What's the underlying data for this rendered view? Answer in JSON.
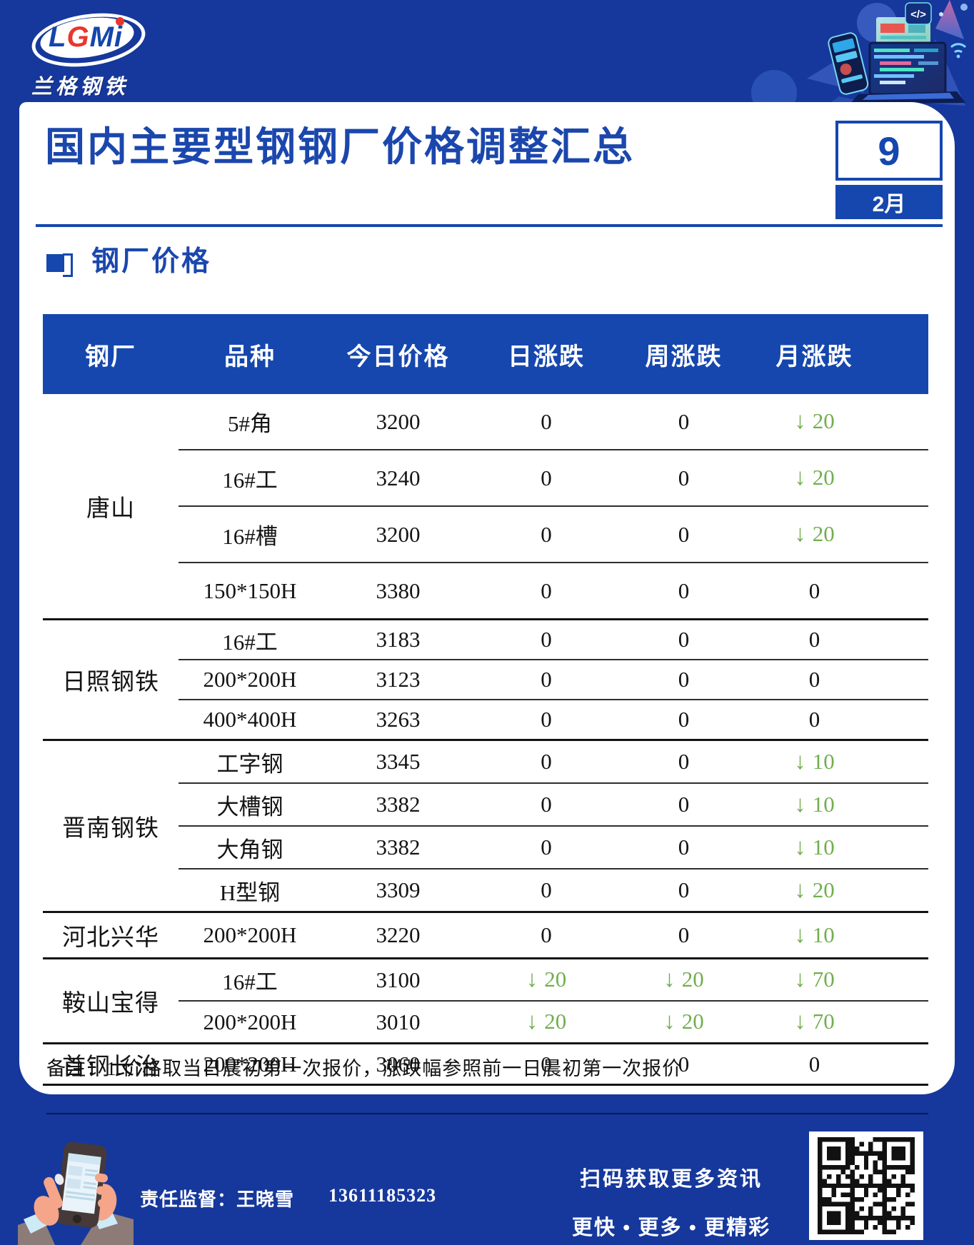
{
  "page": {
    "bg": "#16389c",
    "accent": "#1547ae",
    "down_green": "#71ae50"
  },
  "header": {
    "logo": {
      "letters": [
        {
          "ch": "L",
          "color": "#1446ad"
        },
        {
          "ch": "G",
          "color": "#e8362e"
        },
        {
          "ch": "M",
          "color": "#1446ad"
        },
        {
          "ch": "i",
          "color": "#1446ad"
        }
      ],
      "brand": "兰格钢铁"
    },
    "illustration": {
      "code_badge": "</>"
    }
  },
  "card": {
    "title": "国内主要型钢钢厂价格调整汇总",
    "date": {
      "day": "9",
      "month": "2月"
    },
    "section_title": "钢厂价格",
    "note": "备注：1.价格取当日晨初第一次报价，涨跌幅参照前一日晨初第一次报价"
  },
  "table": {
    "headers": [
      "钢厂",
      "品种",
      "今日价格",
      "日涨跌",
      "周涨跌",
      "月涨跌"
    ],
    "groups": [
      {
        "factory": "唐山",
        "rows": [
          {
            "product": "5#角",
            "price": "3200",
            "day": "0",
            "week": "0",
            "month": "↓20"
          },
          {
            "product": "16#工",
            "price": "3240",
            "day": "0",
            "week": "0",
            "month": "↓20"
          },
          {
            "product": "16#槽",
            "price": "3200",
            "day": "0",
            "week": "0",
            "month": "↓20"
          },
          {
            "product": "150*150H",
            "price": "3380",
            "day": "0",
            "week": "0",
            "month": "0"
          }
        ]
      },
      {
        "factory": "日照钢铁",
        "rows": [
          {
            "product": "16#工",
            "price": "3183",
            "day": "0",
            "week": "0",
            "month": "0"
          },
          {
            "product": "200*200H",
            "price": "3123",
            "day": "0",
            "week": "0",
            "month": "0"
          },
          {
            "product": "400*400H",
            "price": "3263",
            "day": "0",
            "week": "0",
            "month": "0"
          }
        ]
      },
      {
        "factory": "晋南钢铁",
        "rows": [
          {
            "product": "工字钢",
            "price": "3345",
            "day": "0",
            "week": "0",
            "month": "↓10"
          },
          {
            "product": "大槽钢",
            "price": "3382",
            "day": "0",
            "week": "0",
            "month": "↓10"
          },
          {
            "product": "大角钢",
            "price": "3382",
            "day": "0",
            "week": "0",
            "month": "↓10"
          },
          {
            "product": "H型钢",
            "price": "3309",
            "day": "0",
            "week": "0",
            "month": "↓20"
          }
        ]
      },
      {
        "factory": "河北兴华",
        "rows": [
          {
            "product": "200*200H",
            "price": "3220",
            "day": "0",
            "week": "0",
            "month": "↓10"
          }
        ]
      },
      {
        "factory": "鞍山宝得",
        "rows": [
          {
            "product": "16#工",
            "price": "3100",
            "day": "↓20",
            "week": "↓20",
            "month": "↓70"
          },
          {
            "product": "200*200H",
            "price": "3010",
            "day": "↓20",
            "week": "↓20",
            "month": "↓70"
          }
        ]
      },
      {
        "factory": "首钢长治",
        "rows": [
          {
            "product": "200*200H",
            "price": "3060",
            "day": "0",
            "week": "0",
            "month": "0"
          }
        ]
      }
    ]
  },
  "footer": {
    "supervisor_label": "责任监督：王晓雪",
    "supervisor_phone": "13611185323",
    "scan_line1": "扫码获取更多资讯",
    "scan_line2": "更快 • 更多 • 更精彩"
  }
}
